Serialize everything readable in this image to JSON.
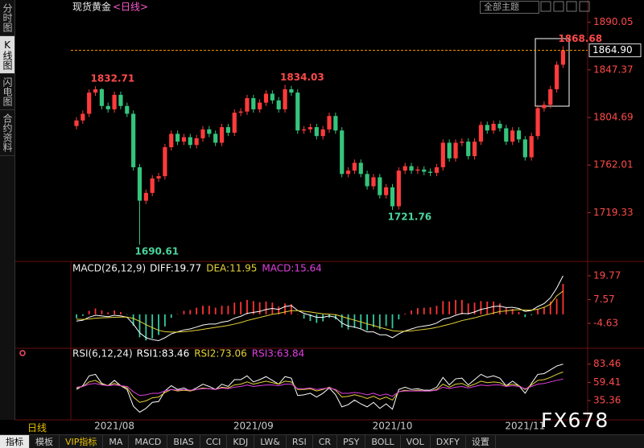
{
  "ui": {
    "symbol": "现货黄金",
    "period": "<日线>",
    "theme_select": "全部主题",
    "side_tabs": [
      "分时图",
      "K线图",
      "闪电图",
      "合约资料"
    ],
    "period_label": "日线",
    "toolbar": [
      "指标",
      "模板",
      "VIP指标",
      "MA",
      "MACD",
      "BIAS",
      "CCI",
      "KDJ",
      "LW&",
      "RSI",
      "CR",
      "PSY",
      "BOLL",
      "VOL",
      "DXFY",
      "设置"
    ],
    "watermark": "FX678"
  },
  "chart_data": [
    {
      "type": "candlestick",
      "categories": [
        null,
        null,
        null,
        null,
        null,
        null,
        "2021/08",
        null,
        null,
        null,
        null,
        null,
        null,
        null,
        null,
        null,
        null,
        null,
        null,
        null,
        null,
        null,
        null,
        null,
        null,
        null,
        null,
        null,
        "2021/09",
        null,
        null,
        null,
        null,
        null,
        null,
        null,
        null,
        null,
        null,
        null,
        null,
        null,
        null,
        null,
        null,
        null,
        null,
        null,
        null,
        null,
        "2021/10",
        null,
        null,
        null,
        null,
        null,
        null,
        null,
        null,
        null,
        null,
        null,
        null,
        null,
        null,
        null,
        null,
        null,
        null,
        null,
        null,
        "2021/11",
        null,
        null,
        null,
        null,
        null,
        null
      ],
      "open": [
        1797,
        1802,
        1808,
        1827,
        1830,
        1815,
        1812,
        1825,
        1815,
        1808,
        1760,
        1730,
        1737,
        1750,
        1752,
        1778,
        1790,
        1783,
        1787,
        1780,
        1786,
        1794,
        1790,
        1782,
        1796,
        1791,
        1809,
        1810,
        1822,
        1812,
        1818,
        1826,
        1820,
        1812,
        1830,
        1827,
        1793,
        1794,
        1796,
        1788,
        1794,
        1806,
        1793,
        1754,
        1757,
        1764,
        1754,
        1743,
        1751,
        1735,
        1742,
        1725,
        1757,
        1761,
        1757,
        1758,
        1756,
        1755,
        1760,
        1782,
        1768,
        1782,
        1783,
        1770,
        1783,
        1798,
        1793,
        1799,
        1795,
        1783,
        1793,
        1785,
        1769,
        1788,
        1813,
        1816,
        1830,
        1852
      ],
      "high": [
        1805,
        1811,
        1830,
        1832.71,
        1831,
        1818,
        1828,
        1828,
        1818,
        1811,
        1763,
        1740,
        1753,
        1755,
        1781,
        1793,
        1793,
        1790,
        1790,
        1789,
        1797,
        1797,
        1793,
        1799,
        1799,
        1812,
        1813,
        1825,
        1825,
        1821,
        1829,
        1829,
        1823,
        1834.03,
        1833,
        1830,
        1797,
        1799,
        1799,
        1797,
        1809,
        1809,
        1796,
        1760,
        1767,
        1767,
        1757,
        1754,
        1754,
        1745,
        1745,
        1760,
        1764,
        1764,
        1761,
        1761,
        1759,
        1763,
        1785,
        1785,
        1785,
        1786,
        1786,
        1786,
        1801,
        1801,
        1802,
        1802,
        1798,
        1796,
        1796,
        1788,
        1791,
        1816,
        1819,
        1833,
        1855,
        1868.68
      ],
      "low": [
        1794,
        1799,
        1805,
        1824,
        1812,
        1809,
        1809,
        1812,
        1805,
        1757,
        1690.61,
        1727,
        1734,
        1747,
        1749,
        1775,
        1780,
        1780,
        1777,
        1777,
        1783,
        1787,
        1779,
        1779,
        1788,
        1788,
        1806,
        1807,
        1809,
        1809,
        1815,
        1817,
        1809,
        1809,
        1824,
        1790,
        1790,
        1791,
        1785,
        1785,
        1791,
        1790,
        1751,
        1751,
        1754,
        1751,
        1740,
        1740,
        1732,
        1732,
        1721.76,
        1722,
        1754,
        1754,
        1754,
        1753,
        1752,
        1752,
        1757,
        1765,
        1765,
        1779,
        1767,
        1767,
        1780,
        1790,
        1790,
        1792,
        1780,
        1780,
        1782,
        1766,
        1766,
        1785,
        1810,
        1813,
        1827,
        1849
      ],
      "close": [
        1802,
        1808,
        1827,
        1830,
        1815,
        1812,
        1825,
        1815,
        1808,
        1760,
        1730,
        1737,
        1750,
        1752,
        1778,
        1790,
        1783,
        1787,
        1780,
        1786,
        1794,
        1790,
        1782,
        1796,
        1791,
        1809,
        1810,
        1822,
        1812,
        1818,
        1826,
        1820,
        1812,
        1830,
        1827,
        1793,
        1794,
        1796,
        1788,
        1794,
        1806,
        1793,
        1754,
        1757,
        1764,
        1754,
        1743,
        1751,
        1735,
        1742,
        1725,
        1757,
        1761,
        1757,
        1758,
        1756,
        1755,
        1760,
        1782,
        1768,
        1782,
        1783,
        1770,
        1783,
        1798,
        1793,
        1799,
        1795,
        1783,
        1793,
        1785,
        1769,
        1788,
        1813,
        1816,
        1830,
        1852,
        1864.9
      ],
      "up_color": "#ff3b3b",
      "down_color": "#35c47c",
      "ylim": [
        1677,
        1897.8
      ],
      "yticks": [
        1719.33,
        1762.01,
        1804.69,
        1847.37,
        1890.05
      ],
      "annotations": [
        "1832.71",
        "1834.03",
        "1690.61",
        "1721.76",
        "1868.68"
      ],
      "last_price_label": "1864.90",
      "last_price_color": "#ff9a00"
    },
    {
      "type": "combo",
      "legend_title": "MACD(26,12,9)",
      "ylim": [
        -17,
        25.1
      ],
      "yticks": [
        -4.63,
        7.57,
        19.77
      ],
      "series": [
        {
          "name": "DIFF:19.77",
          "kind": "line",
          "color": "#ffffff",
          "values": [
            -3.5,
            -3,
            -1.5,
            -0.5,
            -0.8,
            -1.2,
            -0.5,
            -0.8,
            -1.5,
            -5,
            -9.5,
            -12,
            -13,
            -13.5,
            -12,
            -10,
            -9,
            -8,
            -7.5,
            -6.5,
            -5.5,
            -5,
            -5,
            -4,
            -3.5,
            -2,
            -1,
            0.5,
            1,
            1.5,
            2.5,
            3,
            2.5,
            4,
            4.5,
            2,
            0.5,
            -0.5,
            -1.5,
            -1.5,
            -0.8,
            -1.5,
            -4.5,
            -6,
            -6.5,
            -7.5,
            -9,
            -9,
            -10.5,
            -10.5,
            -12,
            -10,
            -8.5,
            -7.5,
            -6.5,
            -6,
            -5.5,
            -4.5,
            -2.5,
            -1.8,
            -0.5,
            0.5,
            0.3,
            1.2,
            2.5,
            3.2,
            4,
            4.2,
            3.5,
            3.6,
            3,
            1.5,
            2,
            4,
            5.5,
            8.5,
            13.5,
            19.77
          ]
        },
        {
          "name": "DEA:11.95",
          "kind": "line",
          "color": "#e6d33a",
          "values": [
            -2.5,
            -2.6,
            -2.4,
            -2.0,
            -1.8,
            -1.7,
            -1.5,
            -1.4,
            -1.4,
            -2.1,
            -3.6,
            -5.3,
            -6.8,
            -8.2,
            -8.9,
            -9.1,
            -9.1,
            -8.9,
            -8.6,
            -8.2,
            -7.7,
            -7.2,
            -6.7,
            -6.2,
            -5.7,
            -5.0,
            -4.2,
            -3.2,
            -2.4,
            -1.6,
            -0.8,
            0.0,
            0.5,
            1.2,
            1.9,
            1.9,
            1.6,
            1.2,
            0.7,
            0.3,
            0.1,
            -0.2,
            -1.1,
            -2.1,
            -3.0,
            -3.9,
            -4.9,
            -5.7,
            -6.7,
            -7.5,
            -8.4,
            -8.7,
            -8.7,
            -8.5,
            -8.1,
            -7.7,
            -7.3,
            -6.7,
            -5.9,
            -5.1,
            -4.2,
            -3.2,
            -2.5,
            -1.8,
            -0.9,
            -0.1,
            0.7,
            1.4,
            1.8,
            2.2,
            2.4,
            2.2,
            2.2,
            2.6,
            3.6,
            5.2,
            9.5,
            11.95
          ]
        },
        {
          "name": "MACD:15.64",
          "kind": "bar",
          "color": "#e040e0",
          "up_color": "#ff3333",
          "down_color": "#33c8a0",
          "values": [
            -2.0,
            -0.8,
            1.8,
            3.0,
            2.0,
            1.0,
            2.0,
            1.2,
            -0.2,
            -5.8,
            -11.8,
            -13.4,
            -12.4,
            -10.6,
            -6.2,
            -1.8,
            0.2,
            1.8,
            2.2,
            3.4,
            4.4,
            4.4,
            3.4,
            4.4,
            4.4,
            6.0,
            6.4,
            7.4,
            6.8,
            6.2,
            6.6,
            6.0,
            4.0,
            5.6,
            5.2,
            0.2,
            -2.2,
            -3.4,
            -4.4,
            -3.6,
            -1.8,
            -2.6,
            -6.8,
            -7.8,
            -7.0,
            -7.2,
            -8.2,
            -6.6,
            -7.6,
            -6.0,
            -7.2,
            -2.6,
            0.4,
            2.0,
            3.2,
            3.4,
            3.6,
            4.4,
            6.8,
            6.6,
            7.4,
            7.4,
            5.6,
            6.0,
            6.8,
            6.6,
            6.6,
            5.6,
            3.4,
            2.8,
            1.2,
            -1.4,
            -0.4,
            2.8,
            3.8,
            6.6,
            8.0,
            15.64
          ]
        }
      ]
    },
    {
      "type": "line",
      "legend_title": "RSI(6,12,24)",
      "ylim": [
        12,
        97
      ],
      "yticks": [
        35.36,
        59.41,
        83.46
      ],
      "series": [
        {
          "name": "RSI1:83.46",
          "color": "#ffffff",
          "values": [
            50,
            55,
            68,
            70,
            58,
            55,
            62,
            55,
            50,
            28,
            20,
            25,
            33,
            34,
            48,
            55,
            50,
            52,
            48,
            52,
            57,
            54,
            50,
            57,
            54,
            63,
            63,
            68,
            60,
            63,
            67,
            62,
            57,
            67,
            65,
            42,
            43,
            45,
            40,
            45,
            52,
            43,
            27,
            30,
            36,
            31,
            27,
            33,
            25,
            31,
            24,
            50,
            53,
            50,
            51,
            49,
            49,
            53,
            66,
            56,
            64,
            65,
            56,
            63,
            70,
            66,
            68,
            65,
            55,
            61,
            55,
            45,
            58,
            70,
            71,
            76,
            81,
            83.46
          ]
        },
        {
          "name": "RSI2:73.06",
          "color": "#e6d33a",
          "values": [
            52,
            54,
            60,
            62,
            57,
            55,
            58,
            55,
            52,
            40,
            33,
            35,
            39,
            40,
            46,
            50,
            48,
            49,
            48,
            50,
            52,
            51,
            50,
            53,
            52,
            56,
            57,
            60,
            57,
            59,
            61,
            59,
            57,
            61,
            60,
            50,
            50,
            51,
            48,
            50,
            53,
            49,
            40,
            41,
            43,
            41,
            38,
            41,
            37,
            40,
            36,
            47,
            49,
            48,
            49,
            48,
            48,
            50,
            57,
            53,
            57,
            58,
            54,
            57,
            61,
            59,
            60,
            59,
            55,
            57,
            55,
            50,
            56,
            62,
            63,
            66,
            70,
            73.06
          ]
        },
        {
          "name": "RSI3:63.84",
          "color": "#e040e0",
          "values": [
            53,
            54,
            57,
            58,
            56,
            55,
            56,
            55,
            54,
            47,
            42,
            43,
            45,
            45,
            48,
            50,
            49,
            50,
            49,
            50,
            51,
            51,
            50,
            52,
            51,
            53,
            54,
            56,
            54,
            55,
            56,
            56,
            55,
            57,
            57,
            51,
            51,
            52,
            50,
            51,
            52,
            50,
            45,
            45,
            46,
            45,
            43,
            45,
            42,
            44,
            41,
            47,
            48,
            48,
            48,
            48,
            48,
            49,
            53,
            51,
            53,
            54,
            52,
            54,
            56,
            55,
            56,
            56,
            54,
            55,
            54,
            51,
            54,
            57,
            58,
            60,
            62,
            63.84
          ]
        }
      ]
    }
  ]
}
